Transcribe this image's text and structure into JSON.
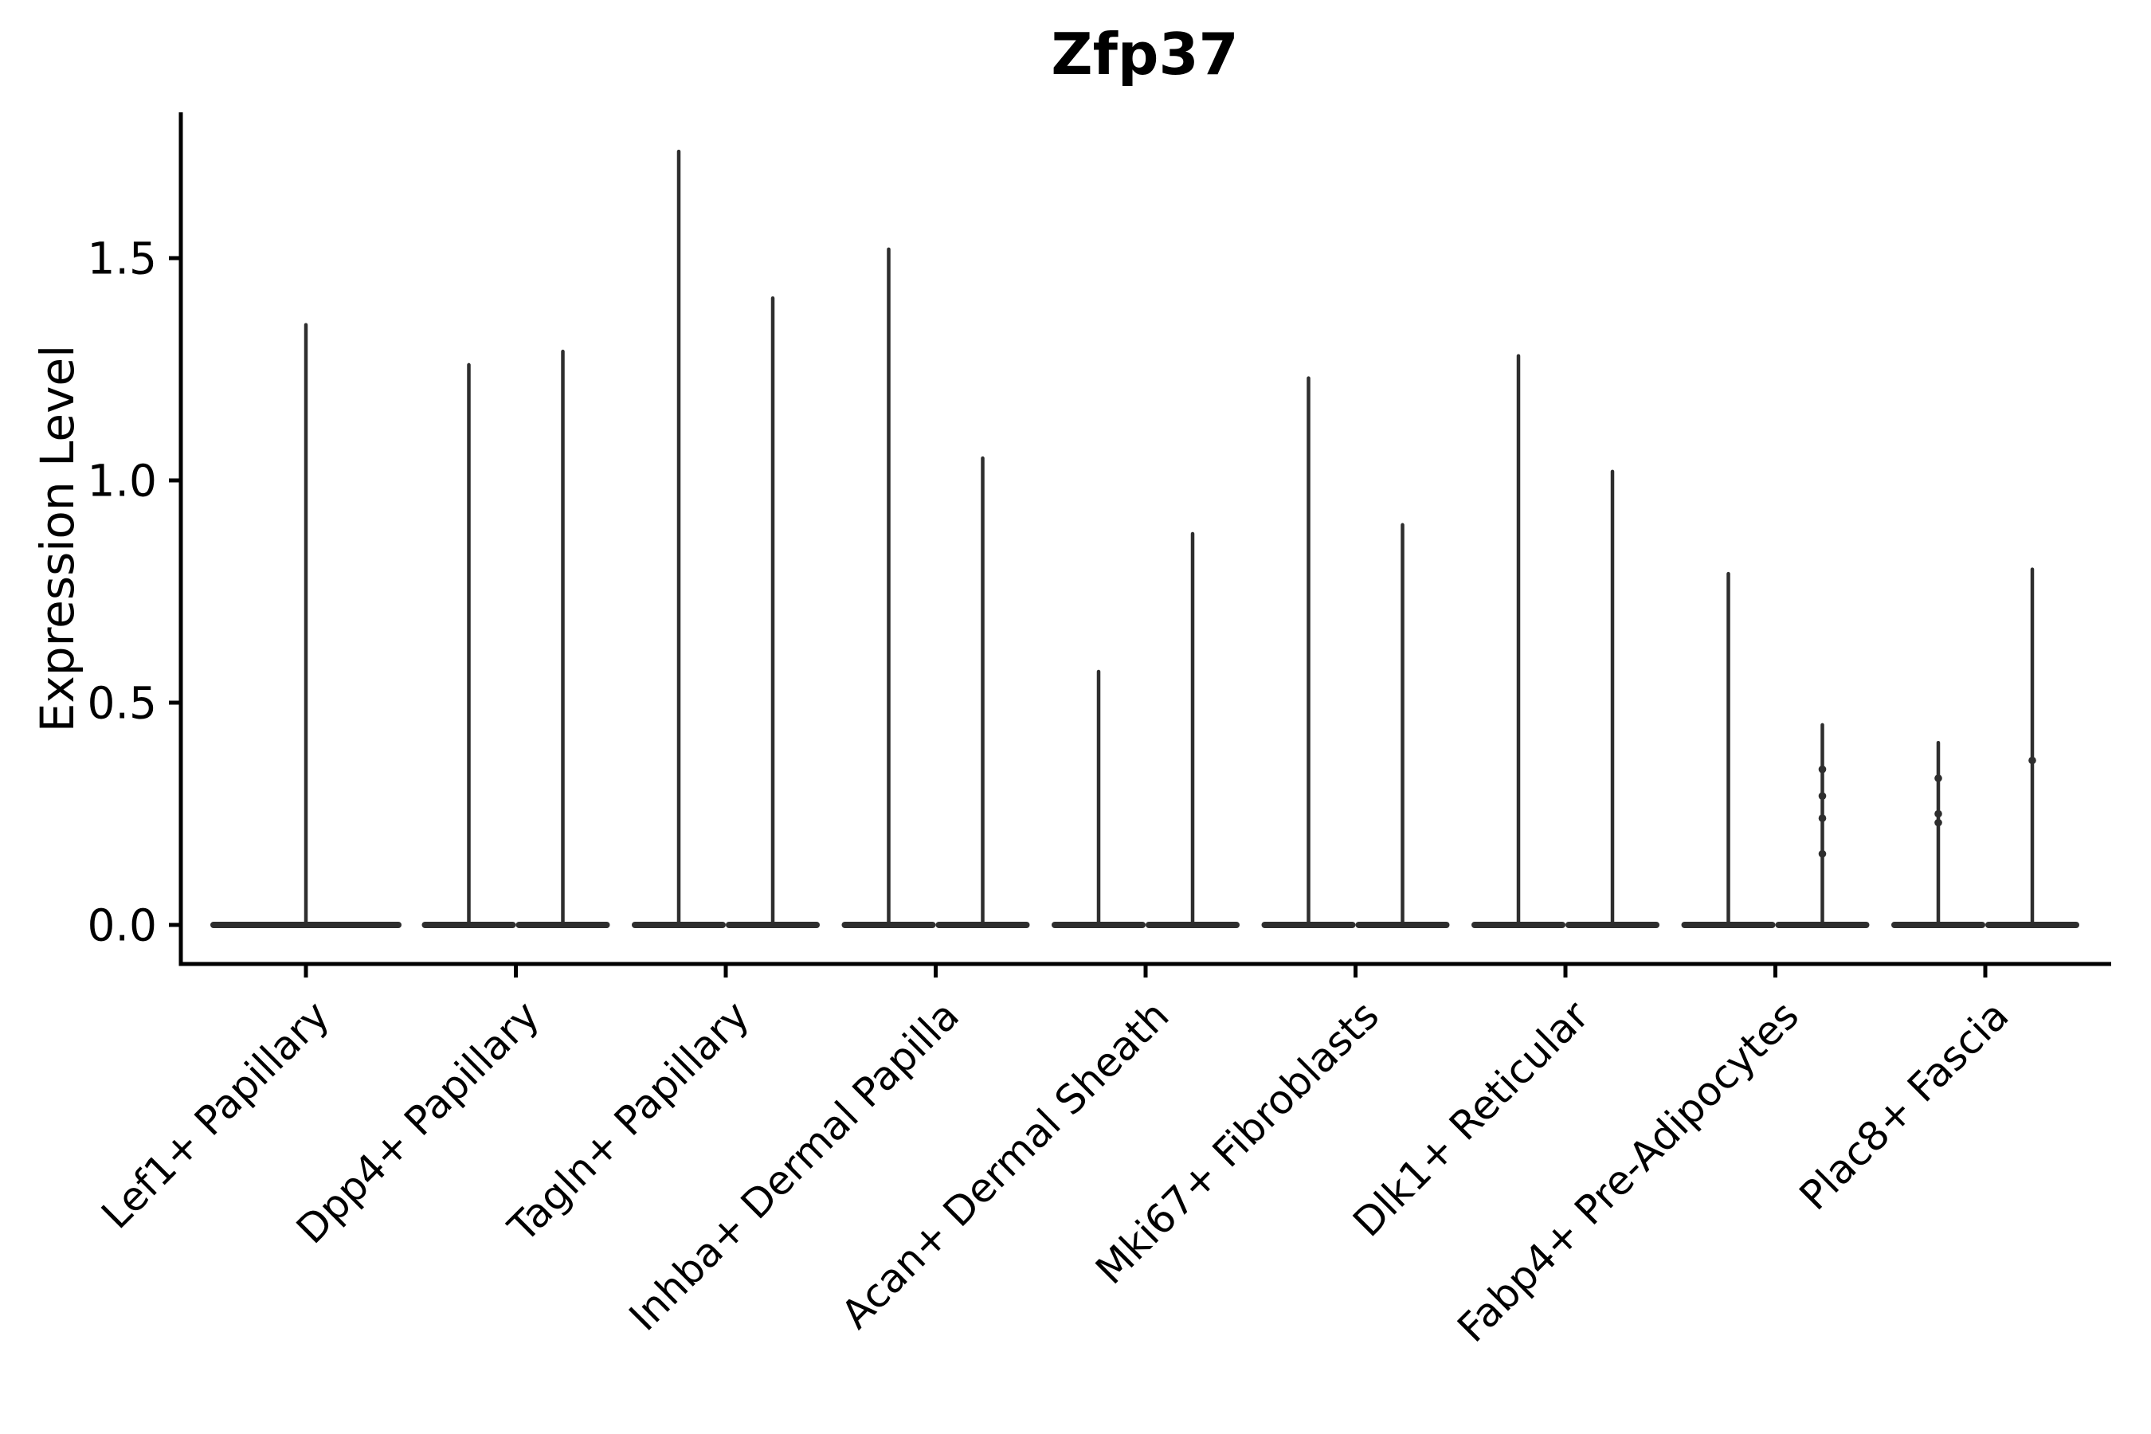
{
  "chart_data": {
    "type": "violin",
    "title": "Zfp37",
    "ylabel": "Expression Level",
    "xlabel": "",
    "yticks": [
      0.0,
      0.5,
      1.0,
      1.5
    ],
    "ytick_labels": [
      "0.0",
      "0.5",
      "1.0",
      "1.5"
    ],
    "ylim": [
      -0.09,
      1.83
    ],
    "grid": false,
    "legend": "none",
    "spines": [
      "left",
      "bottom"
    ],
    "colors": {
      "violin": "#2e2e2e",
      "spine": "#000000",
      "text": "#000000",
      "background": "#ffffff"
    },
    "categories": [
      "Lef1+ Papillary",
      "Dpp4+ Papillary",
      "Tagln+ Papillary",
      "Inhba+ Dermal Papilla",
      "Acan+ Dermal Sheath",
      "Mki67+ Fibroblasts",
      "Dlk1+ Reticular",
      "Fabp4+ Pre-Adipocytes",
      "Plac8+ Fascia"
    ],
    "violin_description": "Each violin is a wide flat base at expression 0 with a thin spike rising to the max expression value; dots mark sparse cells along some spikes.",
    "violins": [
      {
        "category": "Lef1+ Papillary",
        "parts": [
          {
            "max": 1.35,
            "dots": []
          }
        ]
      },
      {
        "category": "Dpp4+ Papillary",
        "parts": [
          {
            "max": 1.26,
            "dots": []
          },
          {
            "max": 1.29,
            "dots": []
          }
        ]
      },
      {
        "category": "Tagln+ Papillary",
        "parts": [
          {
            "max": 1.74,
            "dots": []
          },
          {
            "max": 1.41,
            "dots": []
          }
        ]
      },
      {
        "category": "Inhba+ Dermal Papilla",
        "parts": [
          {
            "max": 1.52,
            "dots": []
          },
          {
            "max": 1.05,
            "dots": []
          }
        ]
      },
      {
        "category": "Acan+ Dermal Sheath",
        "parts": [
          {
            "max": 0.57,
            "dots": []
          },
          {
            "max": 0.88,
            "dots": []
          }
        ]
      },
      {
        "category": "Mki67+ Fibroblasts",
        "parts": [
          {
            "max": 1.23,
            "dots": []
          },
          {
            "max": 0.9,
            "dots": []
          }
        ]
      },
      {
        "category": "Dlk1+ Reticular",
        "parts": [
          {
            "max": 1.28,
            "dots": []
          },
          {
            "max": 1.02,
            "dots": []
          }
        ]
      },
      {
        "category": "Fabp4+ Pre-Adipocytes",
        "parts": [
          {
            "max": 0.79,
            "dots": []
          },
          {
            "max": 0.45,
            "dots": [
              0.35,
              0.29,
              0.24,
              0.16
            ]
          }
        ]
      },
      {
        "category": "Plac8+ Fascia",
        "parts": [
          {
            "max": 0.41,
            "dots": [
              0.33,
              0.25,
              0.23
            ]
          },
          {
            "max": 0.8,
            "dots": [
              0.37
            ]
          }
        ]
      }
    ]
  }
}
